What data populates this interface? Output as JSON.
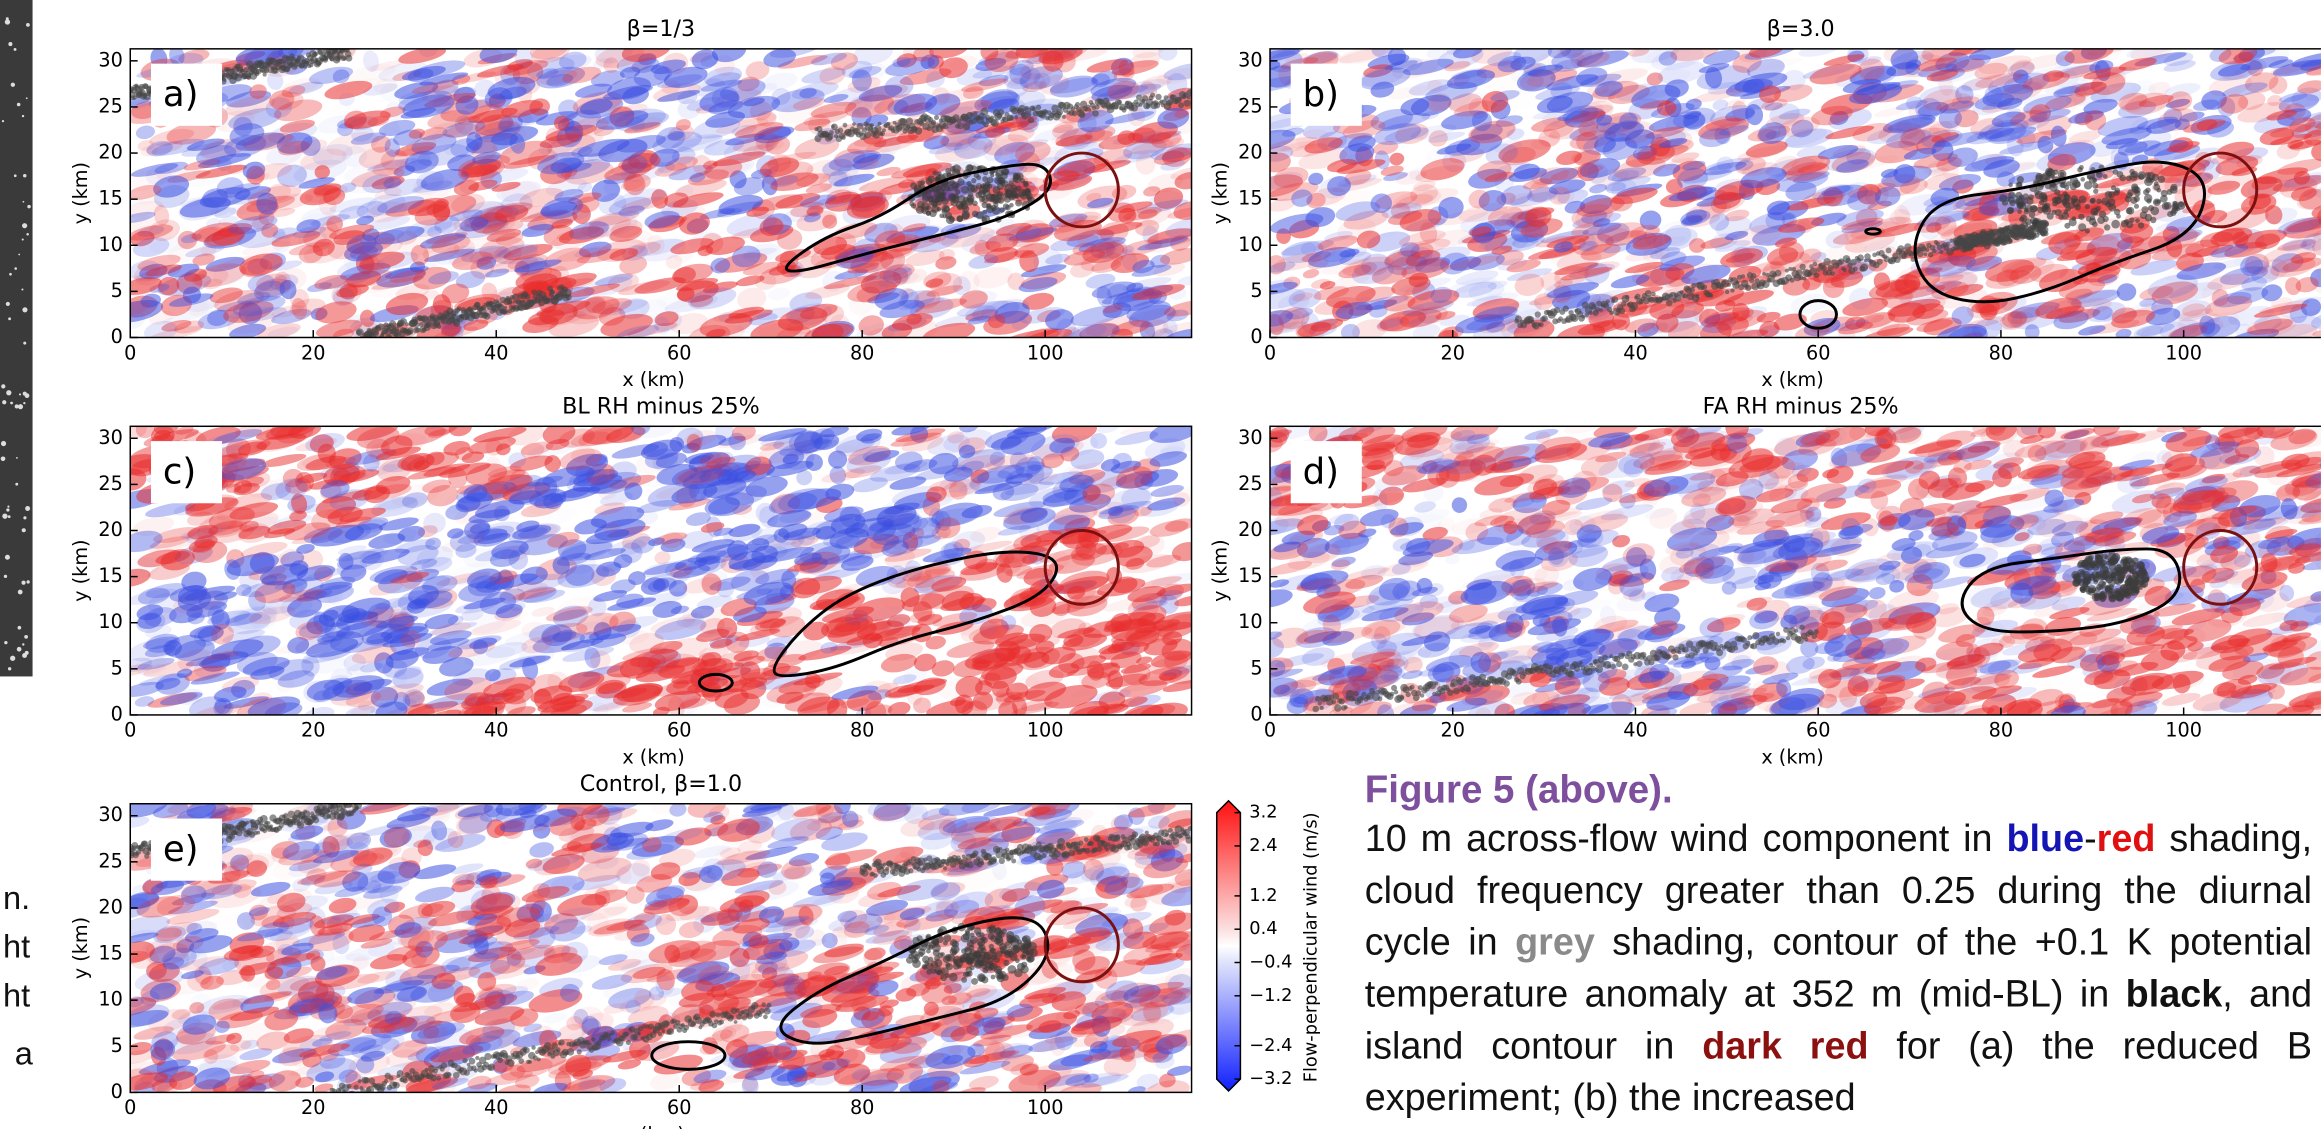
{
  "panels": [
    {
      "label": "a)",
      "title": "β=1/3",
      "xlabel": "x (km)",
      "ylabel": "y (km)",
      "xlim": [
        0,
        116
      ],
      "ylim": [
        0,
        31.3
      ],
      "xticks": [
        0,
        20,
        40,
        60,
        80,
        100
      ],
      "yticks": [
        0,
        5,
        10,
        15,
        20,
        25,
        30
      ]
    },
    {
      "label": "b)",
      "title": "β=3.0",
      "xlabel": "x (km)",
      "ylabel": "y (km)",
      "xlim": [
        0,
        116
      ],
      "ylim": [
        0,
        31.3
      ],
      "xticks": [
        0,
        20,
        40,
        60,
        80,
        100
      ],
      "yticks": [
        0,
        5,
        10,
        15,
        20,
        25,
        30
      ]
    },
    {
      "label": "c)",
      "title": "BL RH minus 25%",
      "xlabel": "x (km)",
      "ylabel": "y (km)",
      "xlim": [
        0,
        116
      ],
      "ylim": [
        0,
        31.3
      ],
      "xticks": [
        0,
        20,
        40,
        60,
        80,
        100
      ],
      "yticks": [
        0,
        5,
        10,
        15,
        20,
        25,
        30
      ]
    },
    {
      "label": "d)",
      "title": "FA RH minus 25%",
      "xlabel": "x (km)",
      "ylabel": "y (km)",
      "xlim": [
        0,
        116
      ],
      "ylim": [
        0,
        31.3
      ],
      "xticks": [
        0,
        20,
        40,
        60,
        80,
        100
      ],
      "yticks": [
        0,
        5,
        10,
        15,
        20,
        25,
        30
      ]
    },
    {
      "label": "e)",
      "title": "Control, β=1.0",
      "xlabel": "x (km)",
      "ylabel": "y (km)",
      "xlim": [
        0,
        116
      ],
      "ylim": [
        0,
        31.3
      ],
      "xticks": [
        0,
        20,
        40,
        60,
        80,
        100
      ],
      "yticks": [
        0,
        5,
        10,
        15,
        20,
        25,
        30
      ]
    }
  ],
  "colorbar": {
    "label": "Flow-perpendicular wind (m/s)",
    "lim": [
      -3.2,
      3.2
    ],
    "ticks": [
      3.2,
      2.4,
      1.2,
      0.4,
      {
        "value": -0.4,
        "label": "−0.4"
      },
      {
        "value": -1.2,
        "label": "−1.2"
      },
      {
        "value": -2.4,
        "label": "−2.4"
      },
      {
        "value": -3.2,
        "label": "−3.2"
      }
    ]
  },
  "caption": {
    "heading": "Figure 5 (above).",
    "segments": [
      "10 m across-flow wind component in ",
      "blue",
      "-",
      "red",
      " shading, cloud frequency greater than 0.25 during the diurnal cycle in ",
      "grey",
      " shading, contour of the +0.1 K potential temperature anomaly at 352 m (mid-BL) in ",
      "black",
      ", and island contour in ",
      "dark red",
      " for (a) the reduced B experiment; (b) the increased"
    ]
  },
  "left_fragments": [
    "n.",
    "ht",
    "ht",
    "a"
  ]
}
